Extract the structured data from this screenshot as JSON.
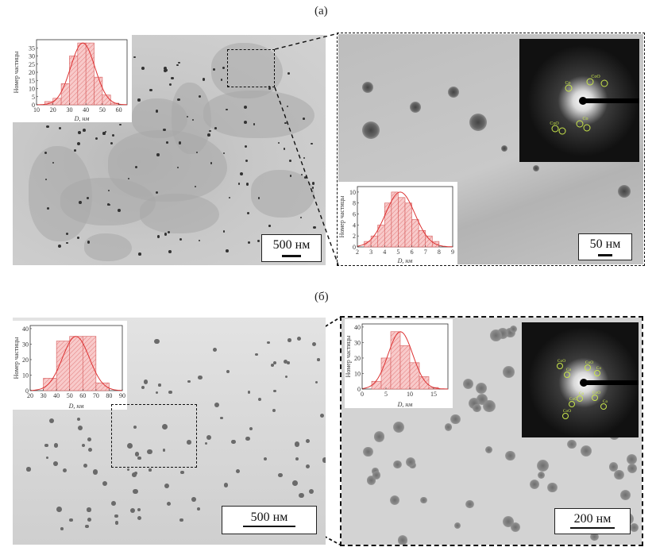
{
  "panels": [
    {
      "label": "(а)",
      "left_scale": "500 нм",
      "right_scale": "50 нм",
      "hist_left": {
        "ylabel": "Номер частицы",
        "xlabel": "D, нм",
        "yticks": [
          "0",
          "5",
          "10",
          "15",
          "20",
          "25",
          "30",
          "35"
        ],
        "xticks": [
          "10",
          "20",
          "30",
          "40",
          "50",
          "60"
        ]
      },
      "hist_right": {
        "ylabel": "Номер частицы",
        "xlabel": "D, нм",
        "yticks": [
          "0",
          "2",
          "4",
          "6",
          "8",
          "10"
        ],
        "xticks": [
          "2",
          "3",
          "4",
          "5",
          "6",
          "7",
          "8",
          "9"
        ]
      },
      "saed_labels": [
        "Co",
        "CoO",
        "CoO",
        "Co"
      ]
    },
    {
      "label": "(б)",
      "left_scale": "500 нм",
      "right_scale": "200 нм",
      "hist_left": {
        "ylabel": "Номер частицы",
        "xlabel": "D, нм",
        "yticks": [
          "0",
          "10",
          "20",
          "30",
          "40"
        ],
        "xticks": [
          "20",
          "30",
          "40",
          "50",
          "60",
          "70",
          "80",
          "90"
        ]
      },
      "hist_right": {
        "ylabel": "Номер частицы",
        "xlabel": "D, нм",
        "yticks": [
          "0",
          "10",
          "20",
          "30",
          "40"
        ],
        "xticks": [
          "0",
          "5",
          "10",
          "15"
        ]
      },
      "saed_labels": [
        "CoO",
        "Co",
        "CoO",
        "Co",
        "Co",
        "CoO",
        "CoO",
        "Co",
        "CoO"
      ]
    }
  ],
  "chart_data": [
    {
      "type": "bar",
      "xlabel": "D, нм",
      "ylabel": "Номер частицы",
      "xlim": [
        10,
        65
      ],
      "ylim": [
        0,
        40
      ],
      "bins": [
        [
          15,
          20
        ],
        [
          20,
          25
        ],
        [
          25,
          30
        ],
        [
          30,
          35
        ],
        [
          35,
          40
        ],
        [
          40,
          45
        ],
        [
          45,
          50
        ],
        [
          50,
          55
        ],
        [
          55,
          60
        ]
      ],
      "values": [
        2,
        4,
        13,
        30,
        38,
        38,
        17,
        6,
        1
      ],
      "fit": "gaussian"
    },
    {
      "type": "bar",
      "xlabel": "D, нм",
      "ylabel": "Номер частицы",
      "xlim": [
        2,
        9
      ],
      "ylim": [
        0,
        11
      ],
      "bins": [
        [
          2.5,
          3
        ],
        [
          3,
          3.5
        ],
        [
          3.5,
          4
        ],
        [
          4,
          4.5
        ],
        [
          4.5,
          5
        ],
        [
          5,
          5.5
        ],
        [
          5.5,
          6
        ],
        [
          6,
          6.5
        ],
        [
          6.5,
          7
        ],
        [
          7,
          7.5
        ],
        [
          7.5,
          8
        ]
      ],
      "values": [
        1,
        2,
        4,
        8,
        10,
        9,
        8,
        5,
        3,
        2,
        1
      ],
      "fit": "gaussian"
    },
    {
      "type": "bar",
      "xlabel": "D, нм",
      "ylabel": "Номер частицы",
      "xlim": [
        20,
        90
      ],
      "ylim": [
        0,
        42
      ],
      "bins": [
        [
          30,
          40
        ],
        [
          40,
          50
        ],
        [
          50,
          60
        ],
        [
          60,
          70
        ],
        [
          70,
          80
        ]
      ],
      "values": [
        8,
        32,
        35,
        35,
        5
      ],
      "fit": "gaussian"
    },
    {
      "type": "bar",
      "xlabel": "D, нм",
      "ylabel": "Номер частицы",
      "xlim": [
        0,
        18
      ],
      "ylim": [
        0,
        42
      ],
      "bins": [
        [
          2,
          4
        ],
        [
          4,
          6
        ],
        [
          6,
          8
        ],
        [
          8,
          10
        ],
        [
          10,
          12
        ],
        [
          12,
          14
        ],
        [
          14,
          16
        ]
      ],
      "values": [
        5,
        20,
        37,
        28,
        17,
        8,
        1
      ],
      "fit": "gaussian"
    }
  ]
}
